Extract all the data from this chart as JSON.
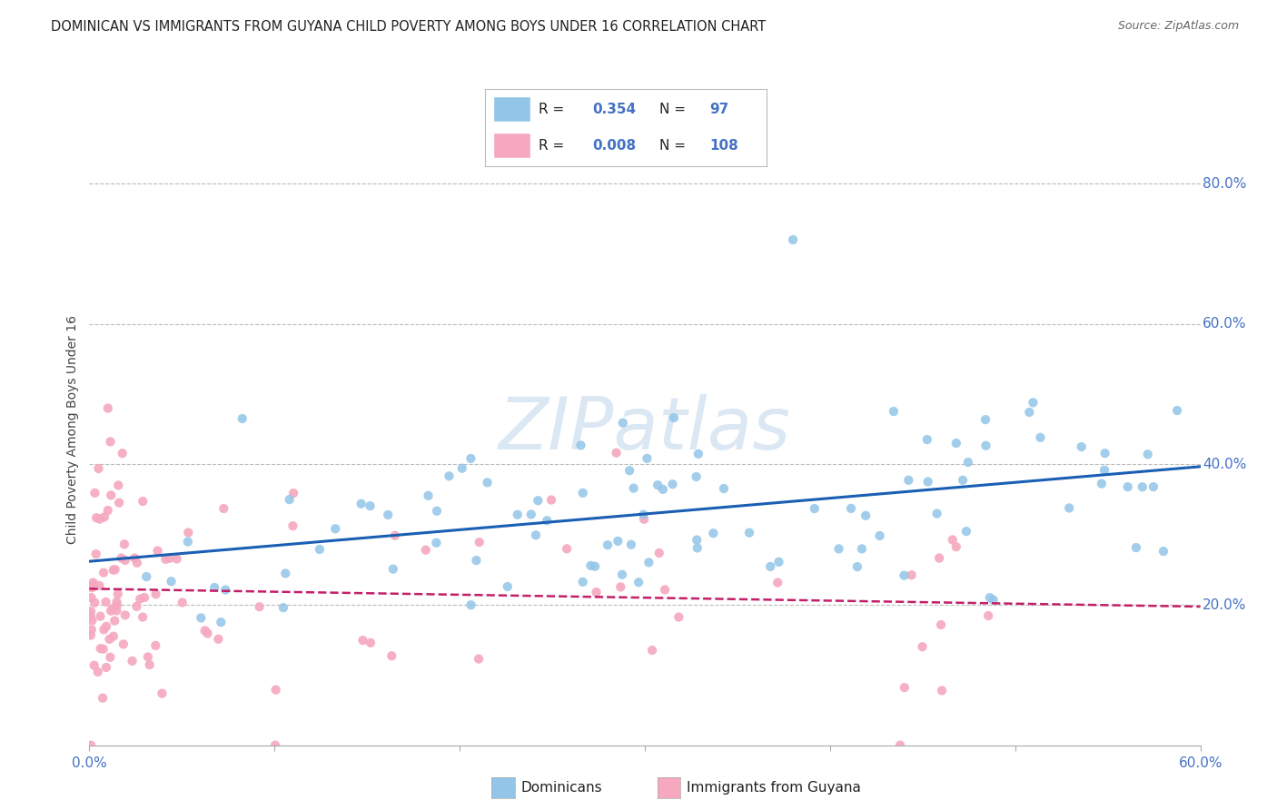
{
  "title": "DOMINICAN VS IMMIGRANTS FROM GUYANA CHILD POVERTY AMONG BOYS UNDER 16 CORRELATION CHART",
  "source": "Source: ZipAtlas.com",
  "ylabel": "Child Poverty Among Boys Under 16",
  "xlim": [
    0.0,
    0.6
  ],
  "ylim": [
    0.0,
    0.9
  ],
  "blue_R": 0.354,
  "blue_N": 97,
  "pink_R": 0.008,
  "pink_N": 108,
  "blue_color": "#92C5E8",
  "pink_color": "#F5A8BE",
  "blue_line_color": "#1A5FB4",
  "pink_line_color": "#C41E6A",
  "watermark": "ZIPatlas",
  "watermark_color": "#CCDFF0",
  "background_color": "#FFFFFF",
  "grid_color": "#BBBBBB",
  "title_color": "#222222",
  "source_color": "#666666"
}
